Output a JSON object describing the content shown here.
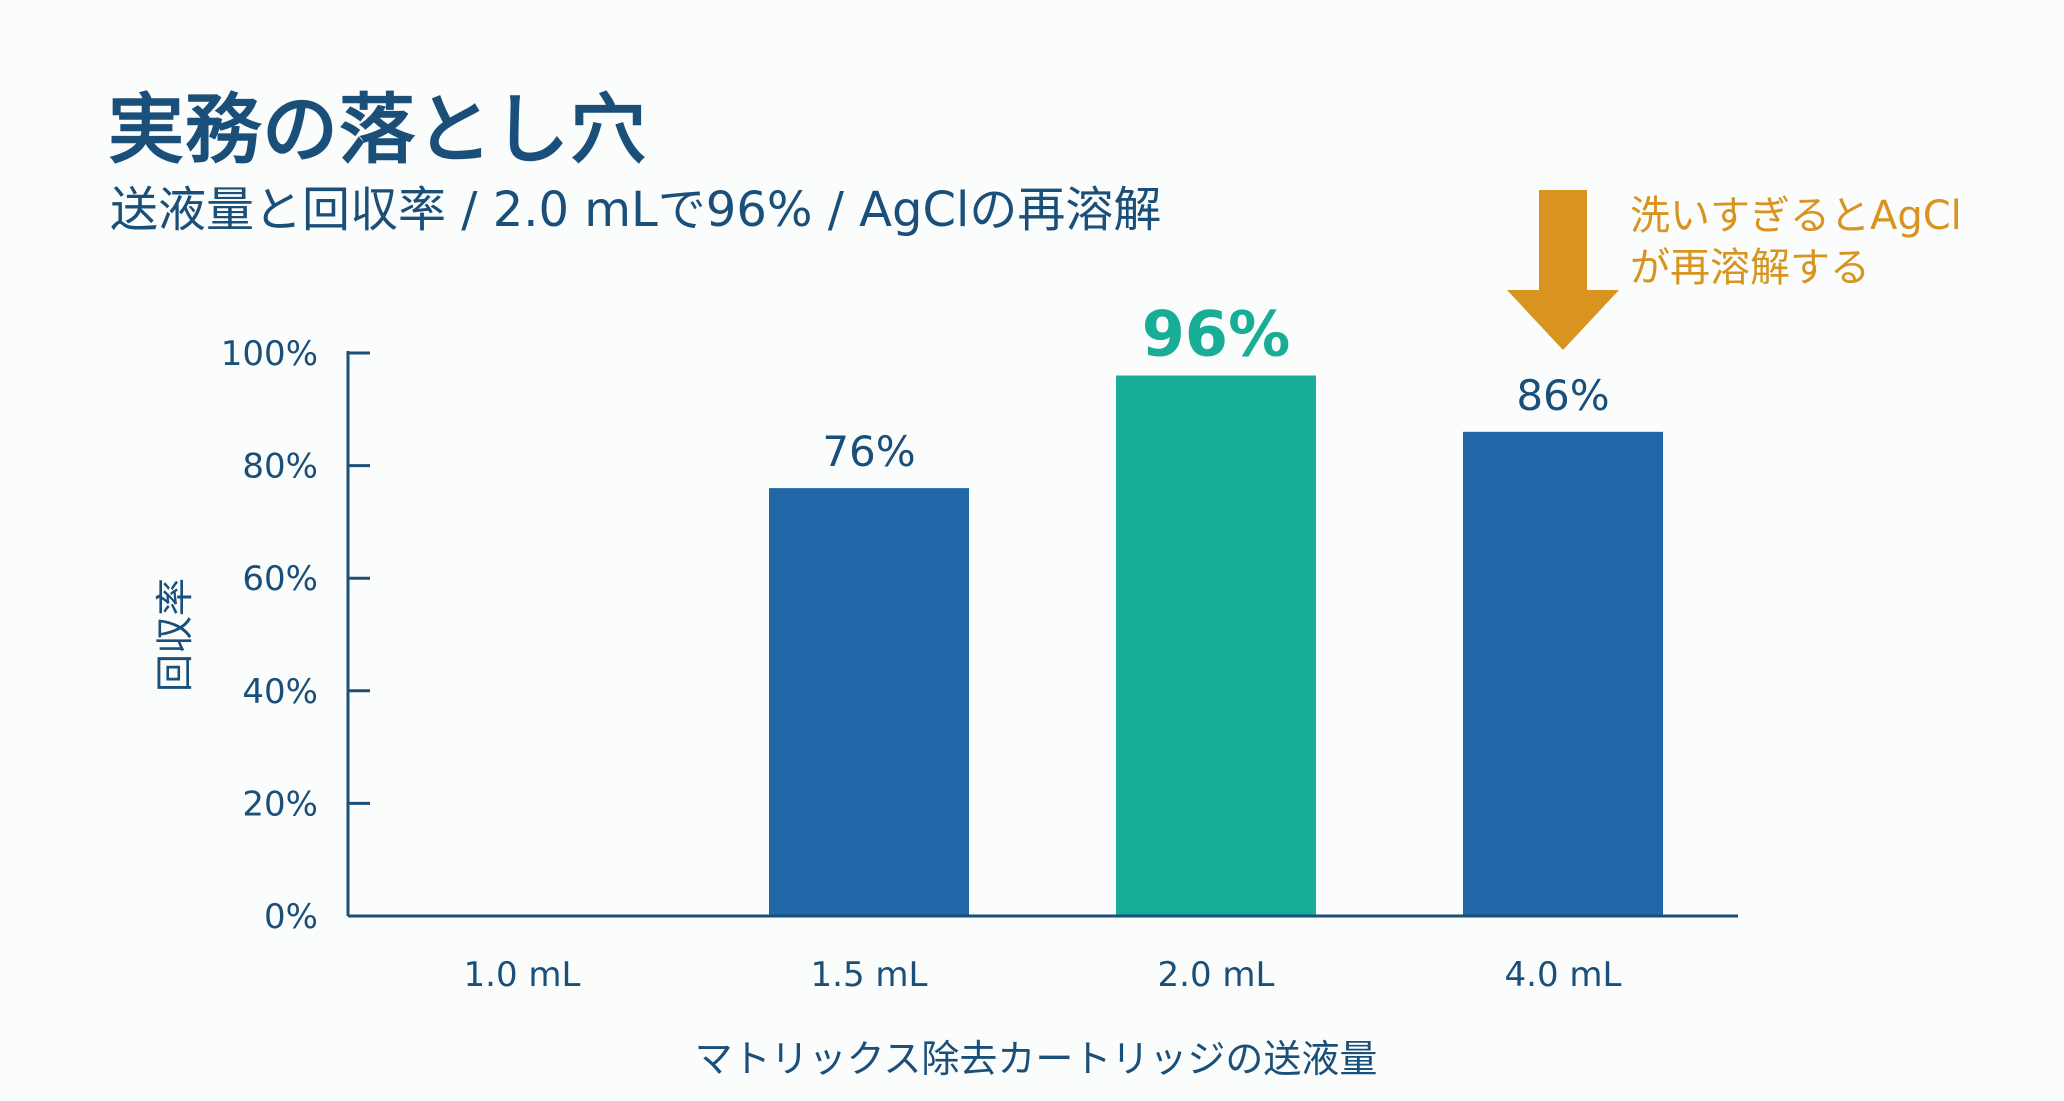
{
  "header": {
    "title": "実務の落とし穴",
    "subtitle": "送液量と回収率 / 2.0 mLで96% / AgClの再溶解"
  },
  "annotation": {
    "lines": [
      "洗いすぎるとAgCl",
      "が再溶解する"
    ],
    "target_category": "4.0 mL",
    "icon": "down-arrow-icon",
    "color": "#d9941f"
  },
  "chart_data": {
    "type": "bar",
    "categories": [
      "1.0 mL",
      "1.5 mL",
      "2.0 mL",
      "4.0 mL"
    ],
    "values": [
      0,
      76,
      96,
      86
    ],
    "value_labels": [
      "",
      "76%",
      "96%",
      "86%"
    ],
    "highlight_index": 2,
    "xlabel": "マトリックス除去カートリッジの送液量",
    "ylabel": "回収率",
    "ylim": [
      0,
      100
    ],
    "yticks": [
      0,
      20,
      40,
      60,
      80,
      100
    ],
    "ytick_labels": [
      "0%",
      "20%",
      "40%",
      "60%",
      "80%",
      "100%"
    ],
    "grid": false,
    "colors": {
      "bar": "#2167a8",
      "highlight": "#17ad97",
      "axis": "#1a4f7a"
    }
  }
}
